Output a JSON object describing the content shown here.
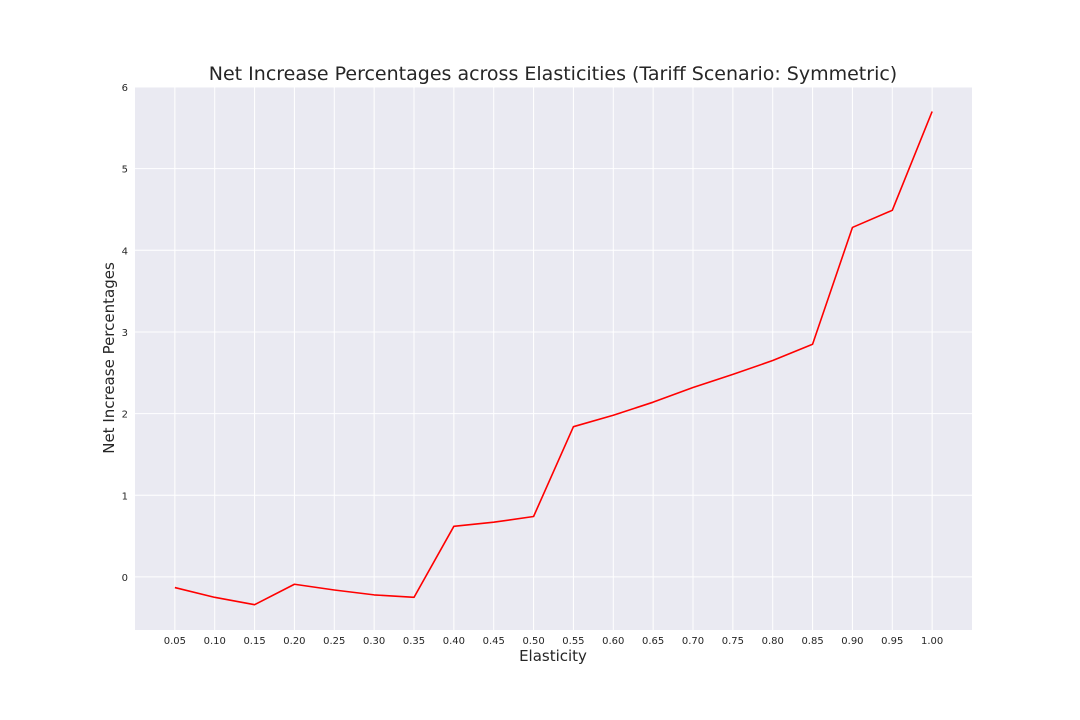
{
  "chart_data": {
    "type": "line",
    "title": "Net Increase Percentages across Elasticities (Tariff Scenario: Symmetric)",
    "xlabel": "Elasticity",
    "ylabel": "Net Increase Percentages",
    "x": [
      0.05,
      0.1,
      0.15,
      0.2,
      0.25,
      0.3,
      0.35,
      0.4,
      0.45,
      0.5,
      0.55,
      0.6,
      0.65,
      0.7,
      0.75,
      0.8,
      0.85,
      0.9,
      0.95,
      1.0
    ],
    "x_tick_labels": [
      "0.05",
      "0.10",
      "0.15",
      "0.20",
      "0.25",
      "0.30",
      "0.35",
      "0.40",
      "0.45",
      "0.50",
      "0.55",
      "0.60",
      "0.65",
      "0.70",
      "0.75",
      "0.80",
      "0.85",
      "0.90",
      "0.95",
      "1.00"
    ],
    "series": [
      {
        "values": [
          -0.13,
          -0.25,
          -0.34,
          -0.09,
          -0.16,
          -0.22,
          -0.25,
          0.62,
          0.67,
          0.74,
          1.84,
          1.98,
          2.14,
          2.32,
          2.48,
          2.65,
          2.85,
          4.28,
          4.49,
          5.7
        ],
        "color": "#ff0000"
      }
    ],
    "xlim": [
      0.0,
      1.05
    ],
    "ylim": [
      -0.65,
      6.0
    ],
    "y_ticks": [
      0,
      1,
      2,
      3,
      4,
      5,
      6
    ],
    "y_tick_labels": [
      "0",
      "1",
      "2",
      "3",
      "4",
      "5",
      "6"
    ],
    "grid": true,
    "background_color": "#eaeaf2",
    "grid_color": "#ffffff"
  }
}
